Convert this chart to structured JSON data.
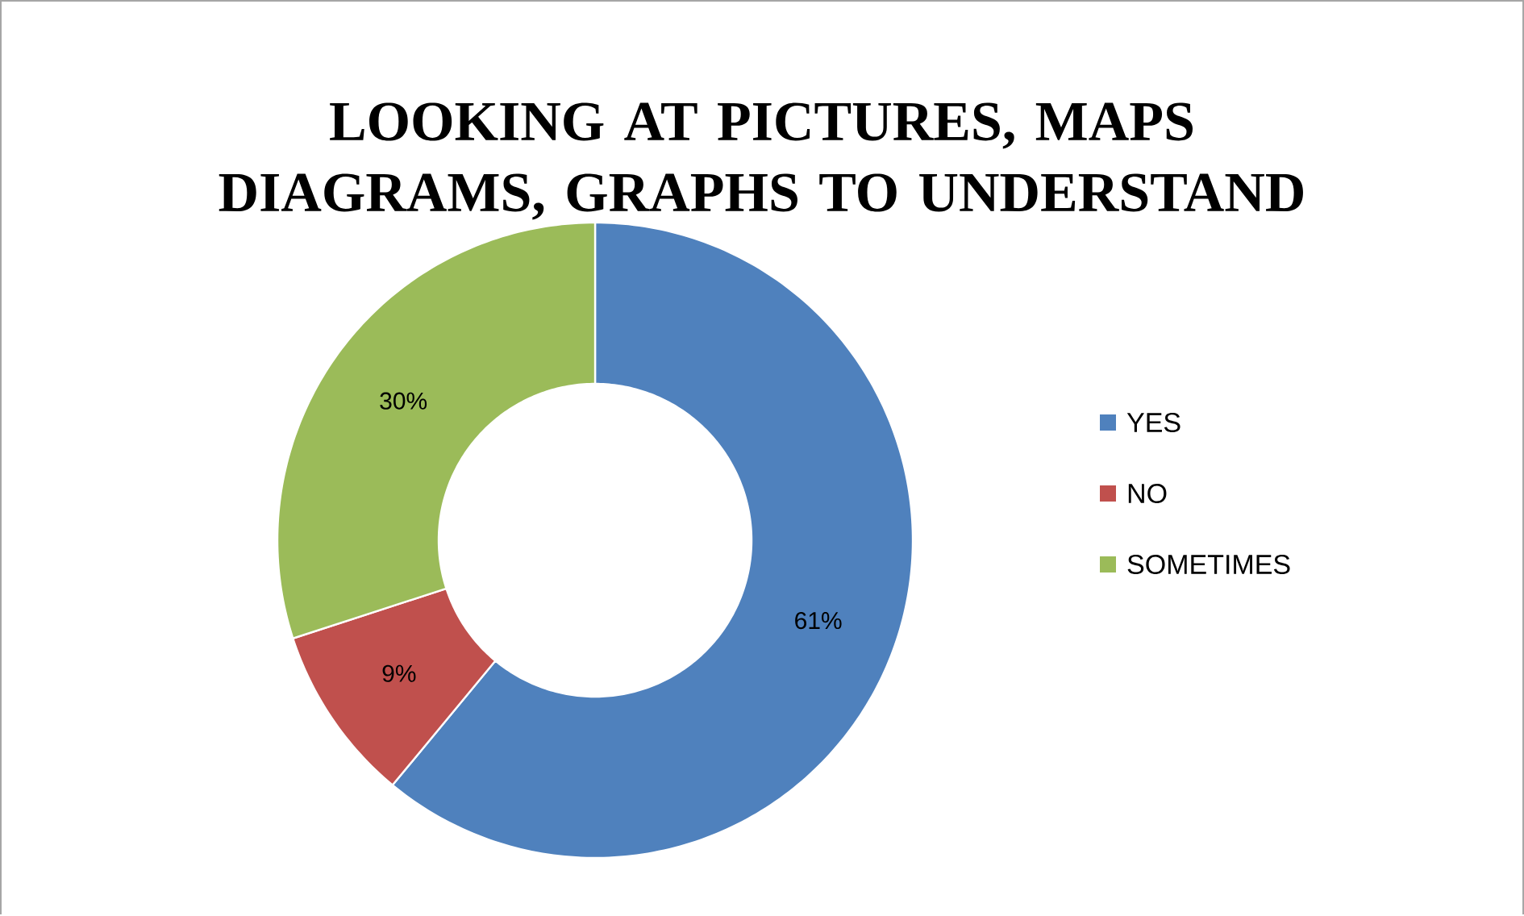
{
  "chart_data": {
    "type": "donut",
    "title": "LOOKING AT PICTURES, MAPS DIAGRAMS, GRAPHS TO UNDERSTAND",
    "categories": [
      "YES",
      "NO",
      "SOMETIMES"
    ],
    "values": [
      61,
      9,
      30
    ],
    "colors": [
      "#4f81bd",
      "#c0504d",
      "#9bbb59"
    ],
    "value_labels": [
      "61%",
      "9%",
      "30%"
    ],
    "legend": "right"
  }
}
